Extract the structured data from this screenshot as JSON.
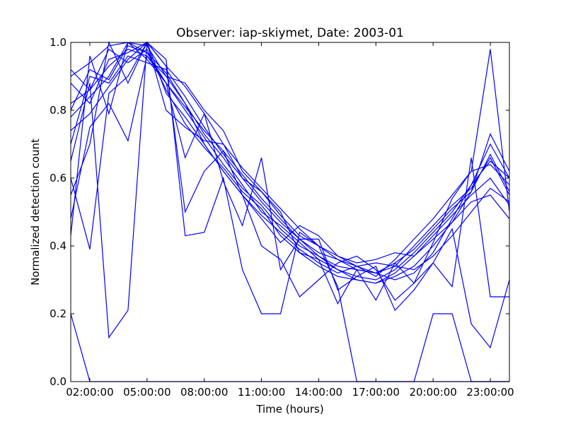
{
  "chart_data": {
    "type": "line",
    "title": "Observer: iap-skiymet, Date: 2003-01",
    "xlabel": "Time (hours)",
    "ylabel": "Normalized detection count",
    "xlim": [
      "01:00:00",
      "24:00:00"
    ],
    "ylim": [
      0,
      1
    ],
    "xticks": [
      "02:00:00",
      "05:00:00",
      "08:00:00",
      "11:00:00",
      "14:00:00",
      "17:00:00",
      "20:00:00",
      "23:00:00"
    ],
    "yticks": [
      "0.0",
      "0.2",
      "0.4",
      "0.6",
      "0.8",
      "1.0"
    ],
    "grid": false,
    "legend": "none",
    "line_color": "#0000ff",
    "x_hours": [
      1,
      2,
      3,
      4,
      5,
      6,
      7,
      8,
      9,
      10,
      11,
      12,
      13,
      14,
      15,
      16,
      17,
      18,
      19,
      20,
      21,
      22,
      23,
      24
    ],
    "series": [
      {
        "values": [
          0.82,
          0.86,
          0.93,
          0.98,
          0.96,
          0.88,
          0.8,
          0.72,
          0.64,
          0.57,
          0.52,
          0.45,
          0.4,
          0.37,
          0.34,
          0.33,
          0.32,
          0.34,
          0.4,
          0.46,
          0.52,
          0.57,
          0.66,
          0.55
        ]
      },
      {
        "values": [
          0.78,
          0.84,
          0.9,
          1.0,
          0.99,
          0.9,
          0.82,
          0.73,
          0.66,
          0.58,
          0.5,
          0.46,
          0.41,
          0.36,
          0.33,
          0.31,
          0.3,
          0.33,
          0.38,
          0.44,
          0.5,
          0.58,
          0.7,
          0.6
        ]
      },
      {
        "values": [
          0.88,
          0.82,
          0.95,
          0.97,
          1.0,
          0.85,
          0.78,
          0.7,
          0.62,
          0.55,
          0.49,
          0.44,
          0.39,
          0.35,
          0.32,
          0.34,
          0.31,
          0.36,
          0.42,
          0.48,
          0.55,
          0.62,
          0.64,
          0.58
        ]
      },
      {
        "values": [
          0.7,
          0.9,
          0.88,
          0.96,
          0.94,
          0.92,
          0.84,
          0.75,
          0.67,
          0.6,
          0.53,
          0.47,
          0.42,
          0.38,
          0.36,
          0.33,
          0.32,
          0.35,
          0.39,
          0.45,
          0.51,
          0.56,
          0.73,
          0.62
        ]
      },
      {
        "values": [
          0.92,
          0.86,
          0.98,
          0.94,
          0.98,
          0.86,
          0.76,
          0.69,
          0.63,
          0.56,
          0.51,
          0.43,
          0.38,
          0.34,
          0.31,
          0.3,
          0.29,
          0.32,
          0.37,
          0.43,
          0.49,
          0.55,
          0.6,
          0.52
        ]
      },
      {
        "values": [
          0.2,
          0.0,
          0.0,
          0.0,
          0.0,
          0.0,
          0.0,
          0.0,
          0.0,
          0.0,
          0.0,
          0.0,
          0.0,
          0.0,
          0.0,
          0.0,
          0.0,
          0.0,
          0.0,
          0.0,
          0.0,
          0.0,
          0.0,
          0.0
        ]
      },
      {
        "values": [
          0.6,
          0.39,
          0.85,
          0.9,
          1.0,
          0.93,
          0.5,
          0.62,
          0.68,
          0.55,
          0.4,
          0.36,
          0.25,
          0.3,
          0.35,
          0.37,
          0.33,
          0.24,
          0.29,
          0.41,
          0.54,
          0.62,
          0.98,
          0.5
        ]
      },
      {
        "values": [
          0.65,
          0.88,
          0.13,
          0.21,
          1.0,
          0.95,
          0.43,
          0.44,
          0.6,
          0.33,
          0.2,
          0.2,
          0.44,
          0.4,
          0.28,
          0.0,
          0.0,
          0.0,
          0.0,
          0.2,
          0.2,
          0.0,
          0.0,
          0.0
        ]
      },
      {
        "values": [
          0.48,
          0.75,
          0.82,
          0.71,
          0.96,
          0.9,
          0.88,
          0.8,
          0.74,
          0.62,
          0.56,
          0.5,
          0.38,
          0.36,
          0.23,
          0.33,
          0.24,
          0.35,
          0.29,
          0.35,
          0.45,
          0.17,
          0.1,
          0.3
        ]
      },
      {
        "values": [
          0.43,
          0.96,
          0.79,
          1.0,
          0.97,
          0.88,
          0.66,
          0.79,
          0.59,
          0.46,
          0.66,
          0.33,
          0.42,
          0.42,
          0.27,
          0.31,
          0.34,
          0.21,
          0.27,
          0.35,
          0.28,
          0.66,
          0.25,
          0.25
        ]
      },
      {
        "values": [
          0.55,
          0.7,
          1.0,
          0.88,
          1.0,
          0.8,
          0.75,
          0.71,
          0.7,
          0.6,
          0.56,
          0.49,
          0.43,
          0.4,
          0.37,
          0.34,
          0.32,
          0.3,
          0.32,
          0.38,
          0.48,
          0.58,
          0.65,
          0.6
        ]
      },
      {
        "values": [
          0.8,
          0.92,
          0.89,
          0.99,
          0.97,
          0.91,
          0.82,
          0.7,
          0.62,
          0.55,
          0.48,
          0.41,
          0.46,
          0.43,
          0.37,
          0.35,
          0.36,
          0.38,
          0.37,
          0.42,
          0.47,
          0.53,
          0.55,
          0.48
        ]
      },
      {
        "values": [
          0.9,
          0.94,
          0.99,
          1.0,
          0.95,
          0.88,
          0.81,
          0.74,
          0.68,
          0.61,
          0.54,
          0.48,
          0.42,
          0.37,
          0.33,
          0.3,
          0.29,
          0.31,
          0.34,
          0.4,
          0.47,
          0.56,
          0.67,
          0.56
        ]
      },
      {
        "values": [
          0.74,
          0.79,
          0.87,
          0.95,
          1.0,
          0.93,
          0.87,
          0.79,
          0.7,
          0.63,
          0.57,
          0.51,
          0.45,
          0.4,
          0.36,
          0.34,
          0.35,
          0.34,
          0.33,
          0.37,
          0.43,
          0.5,
          0.57,
          0.53
        ]
      }
    ]
  }
}
